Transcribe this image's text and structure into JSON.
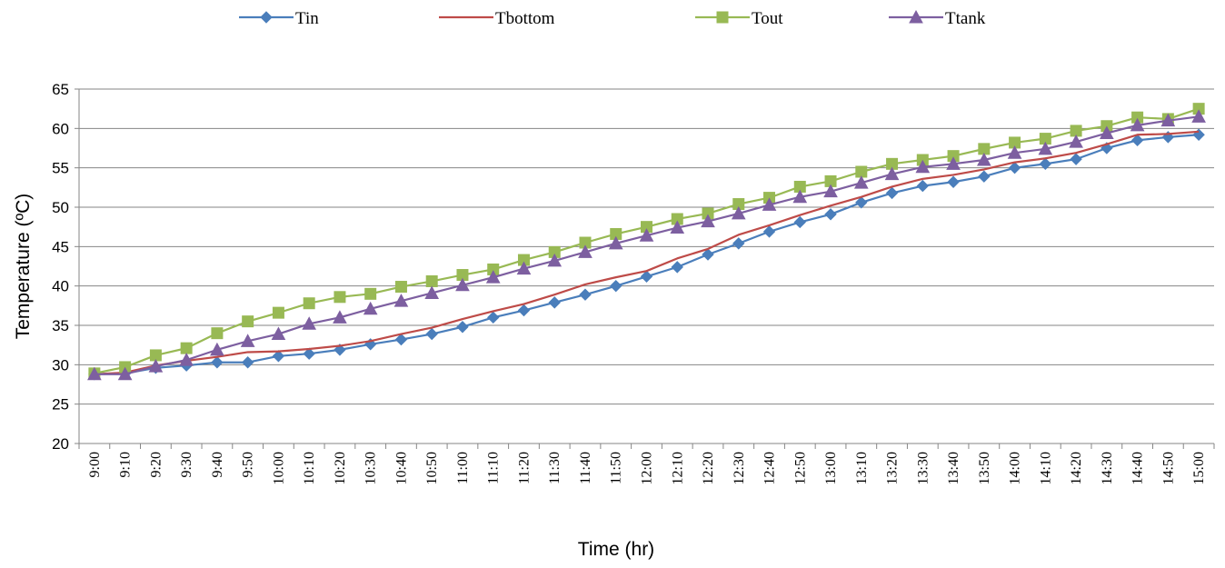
{
  "chart_data": {
    "type": "line",
    "title": "",
    "xlabel": "Time (hr)",
    "ylabel": "Temperature (ºC)",
    "ylim": [
      20,
      65
    ],
    "yticks": [
      20,
      25,
      30,
      35,
      40,
      45,
      50,
      55,
      60,
      65
    ],
    "grid": "horizontal",
    "legend_position": "top",
    "categories": [
      "9:00",
      "9:10",
      "9:20",
      "9:30",
      "9:40",
      "9:50",
      "10:00",
      "10:10",
      "10:20",
      "10:30",
      "10:40",
      "10:50",
      "11:00",
      "11:10",
      "11:20",
      "11:30",
      "11:40",
      "11:50",
      "12:00",
      "12:10",
      "12:20",
      "12:30",
      "12:40",
      "12:50",
      "13:00",
      "13:10",
      "13:20",
      "13:30",
      "13:40",
      "13:50",
      "14:00",
      "14:10",
      "14:20",
      "14:30",
      "14:40",
      "14:50",
      "15:00"
    ],
    "series": [
      {
        "name": "Tin",
        "color": "#4a7ebb",
        "marker": "diamond",
        "values": [
          28.8,
          28.9,
          29.6,
          29.9,
          30.3,
          30.3,
          31.1,
          31.4,
          31.9,
          32.6,
          33.2,
          33.9,
          34.8,
          36.0,
          36.9,
          37.9,
          38.9,
          40.0,
          41.2,
          42.4,
          44.0,
          45.4,
          46.9,
          48.1,
          49.1,
          50.6,
          51.8,
          52.7,
          53.2,
          53.9,
          55.0,
          55.5,
          56.1,
          57.5,
          58.5,
          58.9,
          59.2
        ]
      },
      {
        "name": "Tbottom",
        "color": "#be4b48",
        "marker": "none",
        "values": [
          28.8,
          29.0,
          29.9,
          30.5,
          31.0,
          31.6,
          31.7,
          32.0,
          32.4,
          33.0,
          33.9,
          34.7,
          35.8,
          36.8,
          37.7,
          38.9,
          40.2,
          41.1,
          41.9,
          43.5,
          44.7,
          46.5,
          47.7,
          49.0,
          50.2,
          51.3,
          52.6,
          53.6,
          54.1,
          54.8,
          55.7,
          56.2,
          56.9,
          58.0,
          59.2,
          59.3,
          59.6
        ]
      },
      {
        "name": "Tout",
        "color": "#98b954",
        "marker": "square",
        "values": [
          28.9,
          29.7,
          31.2,
          32.1,
          34.0,
          35.5,
          36.6,
          37.8,
          38.6,
          39.0,
          39.9,
          40.6,
          41.4,
          42.1,
          43.3,
          44.3,
          45.5,
          46.6,
          47.5,
          48.5,
          49.2,
          50.4,
          51.2,
          52.6,
          53.3,
          54.5,
          55.5,
          56.0,
          56.5,
          57.4,
          58.2,
          58.7,
          59.7,
          60.3,
          61.4,
          61.2,
          62.5
        ]
      },
      {
        "name": "Ttank",
        "color": "#7d5fa0",
        "marker": "triangle",
        "values": [
          28.8,
          28.8,
          29.8,
          30.6,
          31.9,
          33.0,
          33.9,
          35.2,
          36.0,
          37.1,
          38.1,
          39.1,
          40.1,
          41.1,
          42.2,
          43.2,
          44.3,
          45.4,
          46.4,
          47.4,
          48.2,
          49.2,
          50.3,
          51.3,
          52.0,
          53.1,
          54.2,
          55.1,
          55.5,
          56.0,
          56.9,
          57.4,
          58.3,
          59.4,
          60.4,
          61.0,
          61.5
        ]
      }
    ]
  }
}
